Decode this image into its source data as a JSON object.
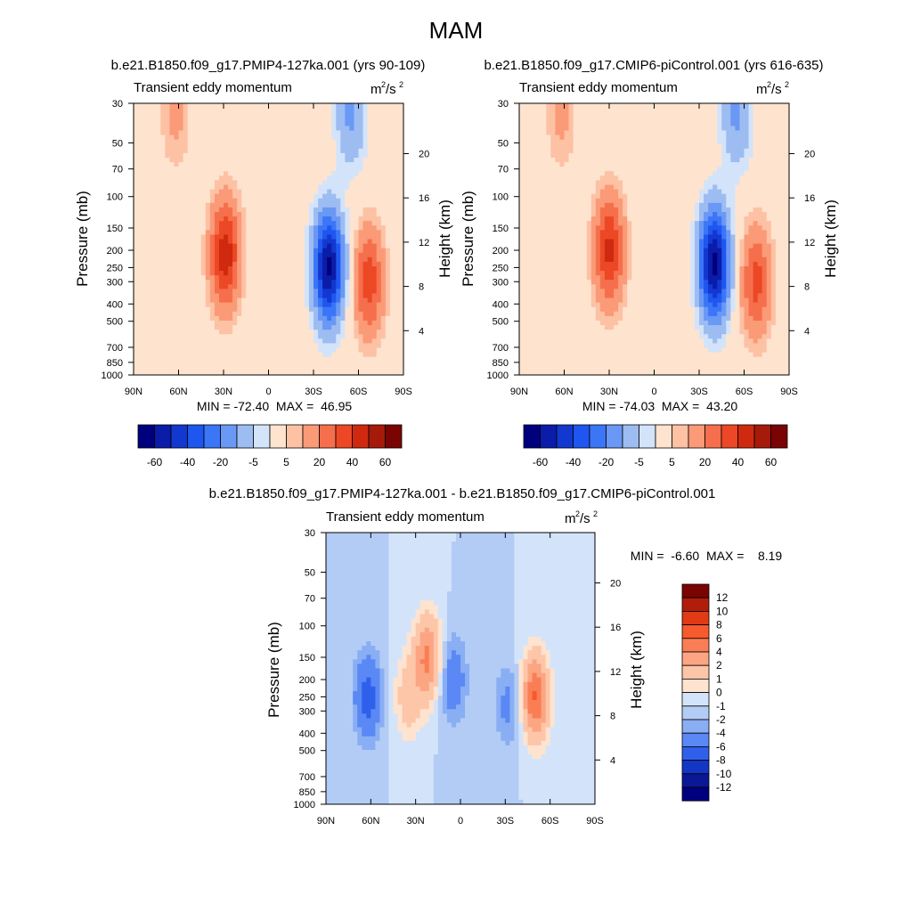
{
  "figure": {
    "title": "MAM",
    "var_label": "Transient eddy momentum",
    "units_base": "m",
    "units_sup1": "2",
    "units_mid": "/s",
    "units_sup2": "2"
  },
  "chart_data": [
    {
      "type": "heatmap",
      "id": "p1",
      "title": "b.e21.B1850.f09_g17.PMIP4-127ka.001 (yrs 90-109)",
      "subtitle": "Transient eddy momentum",
      "xlabel": "",
      "ylabel": "Pressure (mb)",
      "ylabel_right": "Height (km)",
      "x_ticks": [
        "90N",
        "60N",
        "30N",
        "0",
        "30S",
        "60S",
        "90S"
      ],
      "x_tick_lats": [
        90,
        60,
        30,
        0,
        -30,
        -60,
        -90
      ],
      "y_ticks": [
        30,
        50,
        70,
        100,
        150,
        200,
        250,
        300,
        400,
        500,
        700,
        850,
        1000
      ],
      "y_range_mb": [
        30,
        1000
      ],
      "height_ticks_km": [
        4,
        8,
        12,
        16,
        20
      ],
      "min": -72.4,
      "max": 46.95,
      "stats_text": "MIN = -72.40  MAX =  46.95",
      "features": [
        {
          "lat": 29,
          "p": 210,
          "value": 46.95
        },
        {
          "lat": -40,
          "p": 250,
          "value": -72.4
        },
        {
          "lat": -67,
          "p": 300,
          "value": 36
        },
        {
          "lat": 62,
          "p": 35,
          "value": 12
        },
        {
          "lat": -55,
          "p": 35,
          "value": -22
        }
      ]
    },
    {
      "type": "heatmap",
      "id": "p2",
      "title": "b.e21.B1850.f09_g17.CMIP6-piControl.001 (yrs 616-635)",
      "subtitle": "Transient eddy momentum",
      "xlabel": "",
      "ylabel": "Pressure (mb)",
      "ylabel_right": "Height (km)",
      "x_ticks": [
        "90N",
        "60N",
        "30N",
        "0",
        "30S",
        "60S",
        "90S"
      ],
      "x_tick_lats": [
        90,
        60,
        30,
        0,
        -30,
        -60,
        -90
      ],
      "y_ticks": [
        30,
        50,
        70,
        100,
        150,
        200,
        250,
        300,
        400,
        500,
        700,
        850,
        1000
      ],
      "y_range_mb": [
        30,
        1000
      ],
      "height_ticks_km": [
        4,
        8,
        12,
        16,
        20
      ],
      "min": -74.03,
      "max": 43.2,
      "stats_text": "MIN = -74.03  MAX =  43.20",
      "features": [
        {
          "lat": 30,
          "p": 200,
          "value": 43.2
        },
        {
          "lat": -40,
          "p": 240,
          "value": -74.03
        },
        {
          "lat": -68,
          "p": 300,
          "value": 34
        },
        {
          "lat": 62,
          "p": 35,
          "value": 12
        },
        {
          "lat": -55,
          "p": 35,
          "value": -22
        }
      ]
    },
    {
      "type": "heatmap",
      "id": "p3",
      "title": "b.e21.B1850.f09_g17.PMIP4-127ka.001 - b.e21.B1850.f09_g17.CMIP6-piControl.001",
      "subtitle": "Transient eddy momentum",
      "xlabel": "",
      "ylabel": "Pressure (mb)",
      "ylabel_right": "Height (km)",
      "x_ticks": [
        "90N",
        "60N",
        "30N",
        "0",
        "30S",
        "60S",
        "90S"
      ],
      "x_tick_lats": [
        90,
        60,
        30,
        0,
        -30,
        -60,
        -90
      ],
      "y_ticks": [
        30,
        50,
        70,
        100,
        150,
        200,
        250,
        300,
        400,
        500,
        700,
        850,
        1000
      ],
      "y_range_mb": [
        30,
        1000
      ],
      "height_ticks_km": [
        4,
        8,
        12,
        16,
        20
      ],
      "min": -6.6,
      "max": 8.19,
      "stats_text": "MIN =  -6.60  MAX =    8.19",
      "features": [
        {
          "lat": 22,
          "p": 150,
          "value": 6.5
        },
        {
          "lat": -50,
          "p": 250,
          "value": 8.19
        },
        {
          "lat": 35,
          "p": 250,
          "value": 3
        },
        {
          "lat": 62,
          "p": 250,
          "value": -5
        },
        {
          "lat": 5,
          "p": 200,
          "value": -3.5
        },
        {
          "lat": -32,
          "p": 280,
          "value": -2.5
        }
      ]
    }
  ],
  "colorbars": {
    "main": {
      "labels": [
        "-60",
        "-40",
        "-20",
        "-5",
        "5",
        "20",
        "40",
        "60"
      ],
      "levels": [
        -70,
        -60,
        -50,
        -40,
        -30,
        -20,
        -10,
        -5,
        5,
        10,
        20,
        30,
        40,
        50,
        60,
        70
      ],
      "colors": [
        "#00007f",
        "#0a1ca8",
        "#1338d0",
        "#1f56f0",
        "#3b76f7",
        "#6a98f5",
        "#9dbcf2",
        "#d3e4fa",
        "#fee3cf",
        "#fdc1a4",
        "#fb9a77",
        "#f66f4c",
        "#ec4826",
        "#cf2a10",
        "#a61a0a",
        "#7a0403"
      ]
    },
    "diff": {
      "labels": [
        "12",
        "10",
        "8",
        "6",
        "4",
        "2",
        "1",
        "0",
        "-1",
        "-2",
        "-4",
        "-6",
        "-8",
        "-10",
        "-12"
      ],
      "levels": [
        12,
        10,
        8,
        6,
        4,
        2,
        1,
        0,
        -1,
        -2,
        -4,
        -6,
        -8,
        -10,
        -12
      ],
      "colors_top_to_bottom": [
        "#7a0403",
        "#b01e0b",
        "#e03a17",
        "#f65a2e",
        "#fa7e55",
        "#fca583",
        "#fdc6a9",
        "#fee3cf",
        "#d3e4fa",
        "#b3ccf5",
        "#8aaef4",
        "#5a88f4",
        "#2f60ec",
        "#1336c4",
        "#0a1896",
        "#00007f"
      ]
    }
  }
}
